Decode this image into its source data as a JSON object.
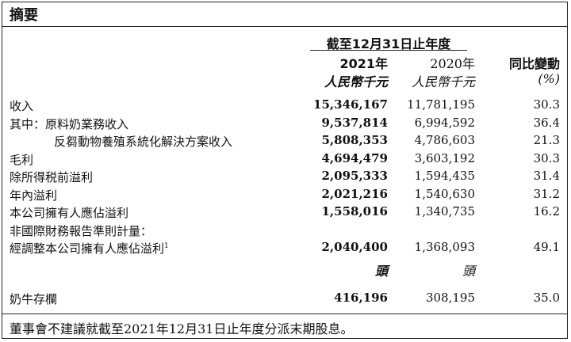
{
  "title": "摘要",
  "header": {
    "period": "截至12月31日止年度",
    "year_current": "2021年",
    "year_prior": "2020年",
    "change_label": "同比變動",
    "unit_current": "人民幣千元",
    "unit_prior": "人民幣千元",
    "unit_change": "(%)"
  },
  "rows": [
    {
      "label": "收入",
      "v2021": "15,346,167",
      "v2020": "11,781,195",
      "change": "30.3"
    },
    {
      "label": "其中：原料奶業務收入",
      "v2021": "9,537,814",
      "v2020": "6,994,592",
      "change": "36.4"
    },
    {
      "label": "反芻動物養殖系統化解決方案收入",
      "v2021": "5,808,353",
      "v2020": "4,786,603",
      "change": "21.3"
    },
    {
      "label": "毛利",
      "v2021": "4,694,479",
      "v2020": "3,603,192",
      "change": "30.3"
    },
    {
      "label": "除所得税前溢利",
      "v2021": "2,095,333",
      "v2020": "1,594,435",
      "change": "31.4"
    },
    {
      "label": "年內溢利",
      "v2021": "2,021,216",
      "v2020": "1,540,630",
      "change": "31.2"
    },
    {
      "label": "本公司擁有人應佔溢利",
      "v2021": "1,558,016",
      "v2020": "1,340,735",
      "change": "16.2"
    },
    {
      "label": "非國際財務報告準則計量：",
      "v2021": "",
      "v2020": "",
      "change": ""
    },
    {
      "label": "經調整本公司擁有人應佔溢利",
      "footnote": "1",
      "v2021": "2,040,400",
      "v2020": "1,368,093",
      "change": "49.1"
    }
  ],
  "head_unit": {
    "current": "頭",
    "prior": "頭"
  },
  "cattle": {
    "label": "奶牛存欄",
    "v2021": "416,196",
    "v2020": "308,195",
    "change": "35.0"
  },
  "footer": "董事會不建議就截至2021年12月31日止年度分派末期股息。"
}
